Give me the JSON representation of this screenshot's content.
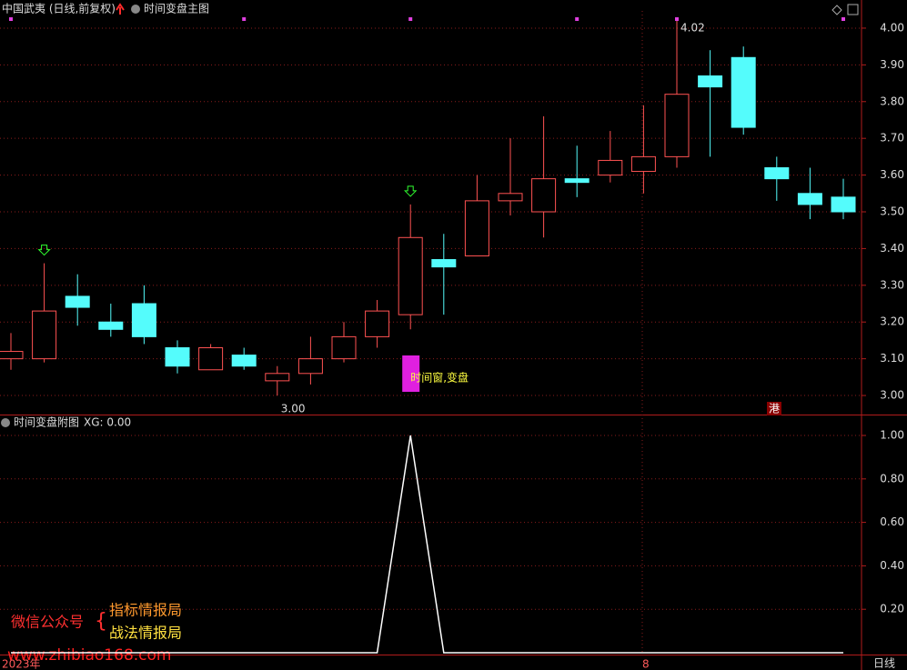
{
  "header": {
    "stock": "中国武夷 (日线,前复权)"
  },
  "chart_data": [
    {
      "type": "candlestick",
      "title": "时间变盘主图",
      "open": [
        3.1,
        3.1,
        3.27,
        3.2,
        3.25,
        3.13,
        3.07,
        3.11,
        3.04,
        3.06,
        3.1,
        3.16,
        3.22,
        3.37,
        3.38,
        3.53,
        3.5,
        3.59,
        3.6,
        3.61,
        3.65,
        3.87,
        3.92,
        3.62,
        3.55,
        3.54
      ],
      "high": [
        3.17,
        3.36,
        3.33,
        3.25,
        3.3,
        3.15,
        3.14,
        3.13,
        3.08,
        3.16,
        3.2,
        3.26,
        3.52,
        3.44,
        3.6,
        3.7,
        3.76,
        3.68,
        3.72,
        3.79,
        4.02,
        3.94,
        3.95,
        3.65,
        3.62,
        3.59
      ],
      "low": [
        3.07,
        3.09,
        3.19,
        3.16,
        3.14,
        3.06,
        3.07,
        3.07,
        3.0,
        3.03,
        3.09,
        3.13,
        3.18,
        3.22,
        3.38,
        3.49,
        3.43,
        3.54,
        3.58,
        3.55,
        3.62,
        3.65,
        3.71,
        3.53,
        3.48,
        3.48
      ],
      "close": [
        3.12,
        3.23,
        3.24,
        3.18,
        3.16,
        3.08,
        3.13,
        3.08,
        3.06,
        3.1,
        3.16,
        3.23,
        3.43,
        3.35,
        3.53,
        3.55,
        3.59,
        3.58,
        3.64,
        3.65,
        3.82,
        3.84,
        3.73,
        3.59,
        3.52,
        3.5
      ],
      "up_color": "#ff5252",
      "down_color": "#54fcfc",
      "ylim": [
        2.95,
        4.05
      ],
      "yticks": [
        {
          "value": 3.0,
          "label": "3.00"
        },
        {
          "value": 3.1,
          "label": "3.10"
        },
        {
          "value": 3.2,
          "label": "3.20"
        },
        {
          "value": 3.3,
          "label": "3.30"
        },
        {
          "value": 3.4,
          "label": "3.40"
        },
        {
          "value": 3.5,
          "label": "3.50"
        },
        {
          "value": 3.6,
          "label": "3.60"
        },
        {
          "value": 3.7,
          "label": "3.70"
        },
        {
          "value": 3.8,
          "label": "3.80"
        },
        {
          "value": 3.9,
          "label": "3.90"
        },
        {
          "value": 4.0,
          "label": "4.00"
        }
      ],
      "grid": true,
      "max_label": "4.02",
      "min_label": "3.00",
      "window_label": "时间窗,变盘",
      "corner_label": "港"
    },
    {
      "type": "line",
      "title": "时间变盘附图",
      "series": [
        {
          "name": "XG: 0.00",
          "color": "#ffffff",
          "values": [
            0,
            0,
            0,
            0,
            0,
            0,
            0,
            0,
            0,
            0,
            0,
            0,
            1,
            0,
            0,
            0,
            0,
            0,
            0,
            0,
            0,
            0,
            0,
            0,
            0,
            0
          ]
        }
      ],
      "ylim": [
        0,
        1.09
      ],
      "yticks": [
        {
          "value": 0.2,
          "label": "0.20"
        },
        {
          "value": 0.4,
          "label": "0.40"
        },
        {
          "value": 0.6,
          "label": "0.60"
        },
        {
          "value": 0.8,
          "label": "0.80"
        },
        {
          "value": 1.0,
          "label": "1.00"
        }
      ],
      "grid": true
    }
  ],
  "watermark": {
    "label": "微信公众号",
    "line1": "指标情报局",
    "line2": "战法情报局",
    "url": "www.zhibiao168.com"
  },
  "footer": {
    "year": "2023年",
    "month": "8",
    "period": "日线"
  }
}
